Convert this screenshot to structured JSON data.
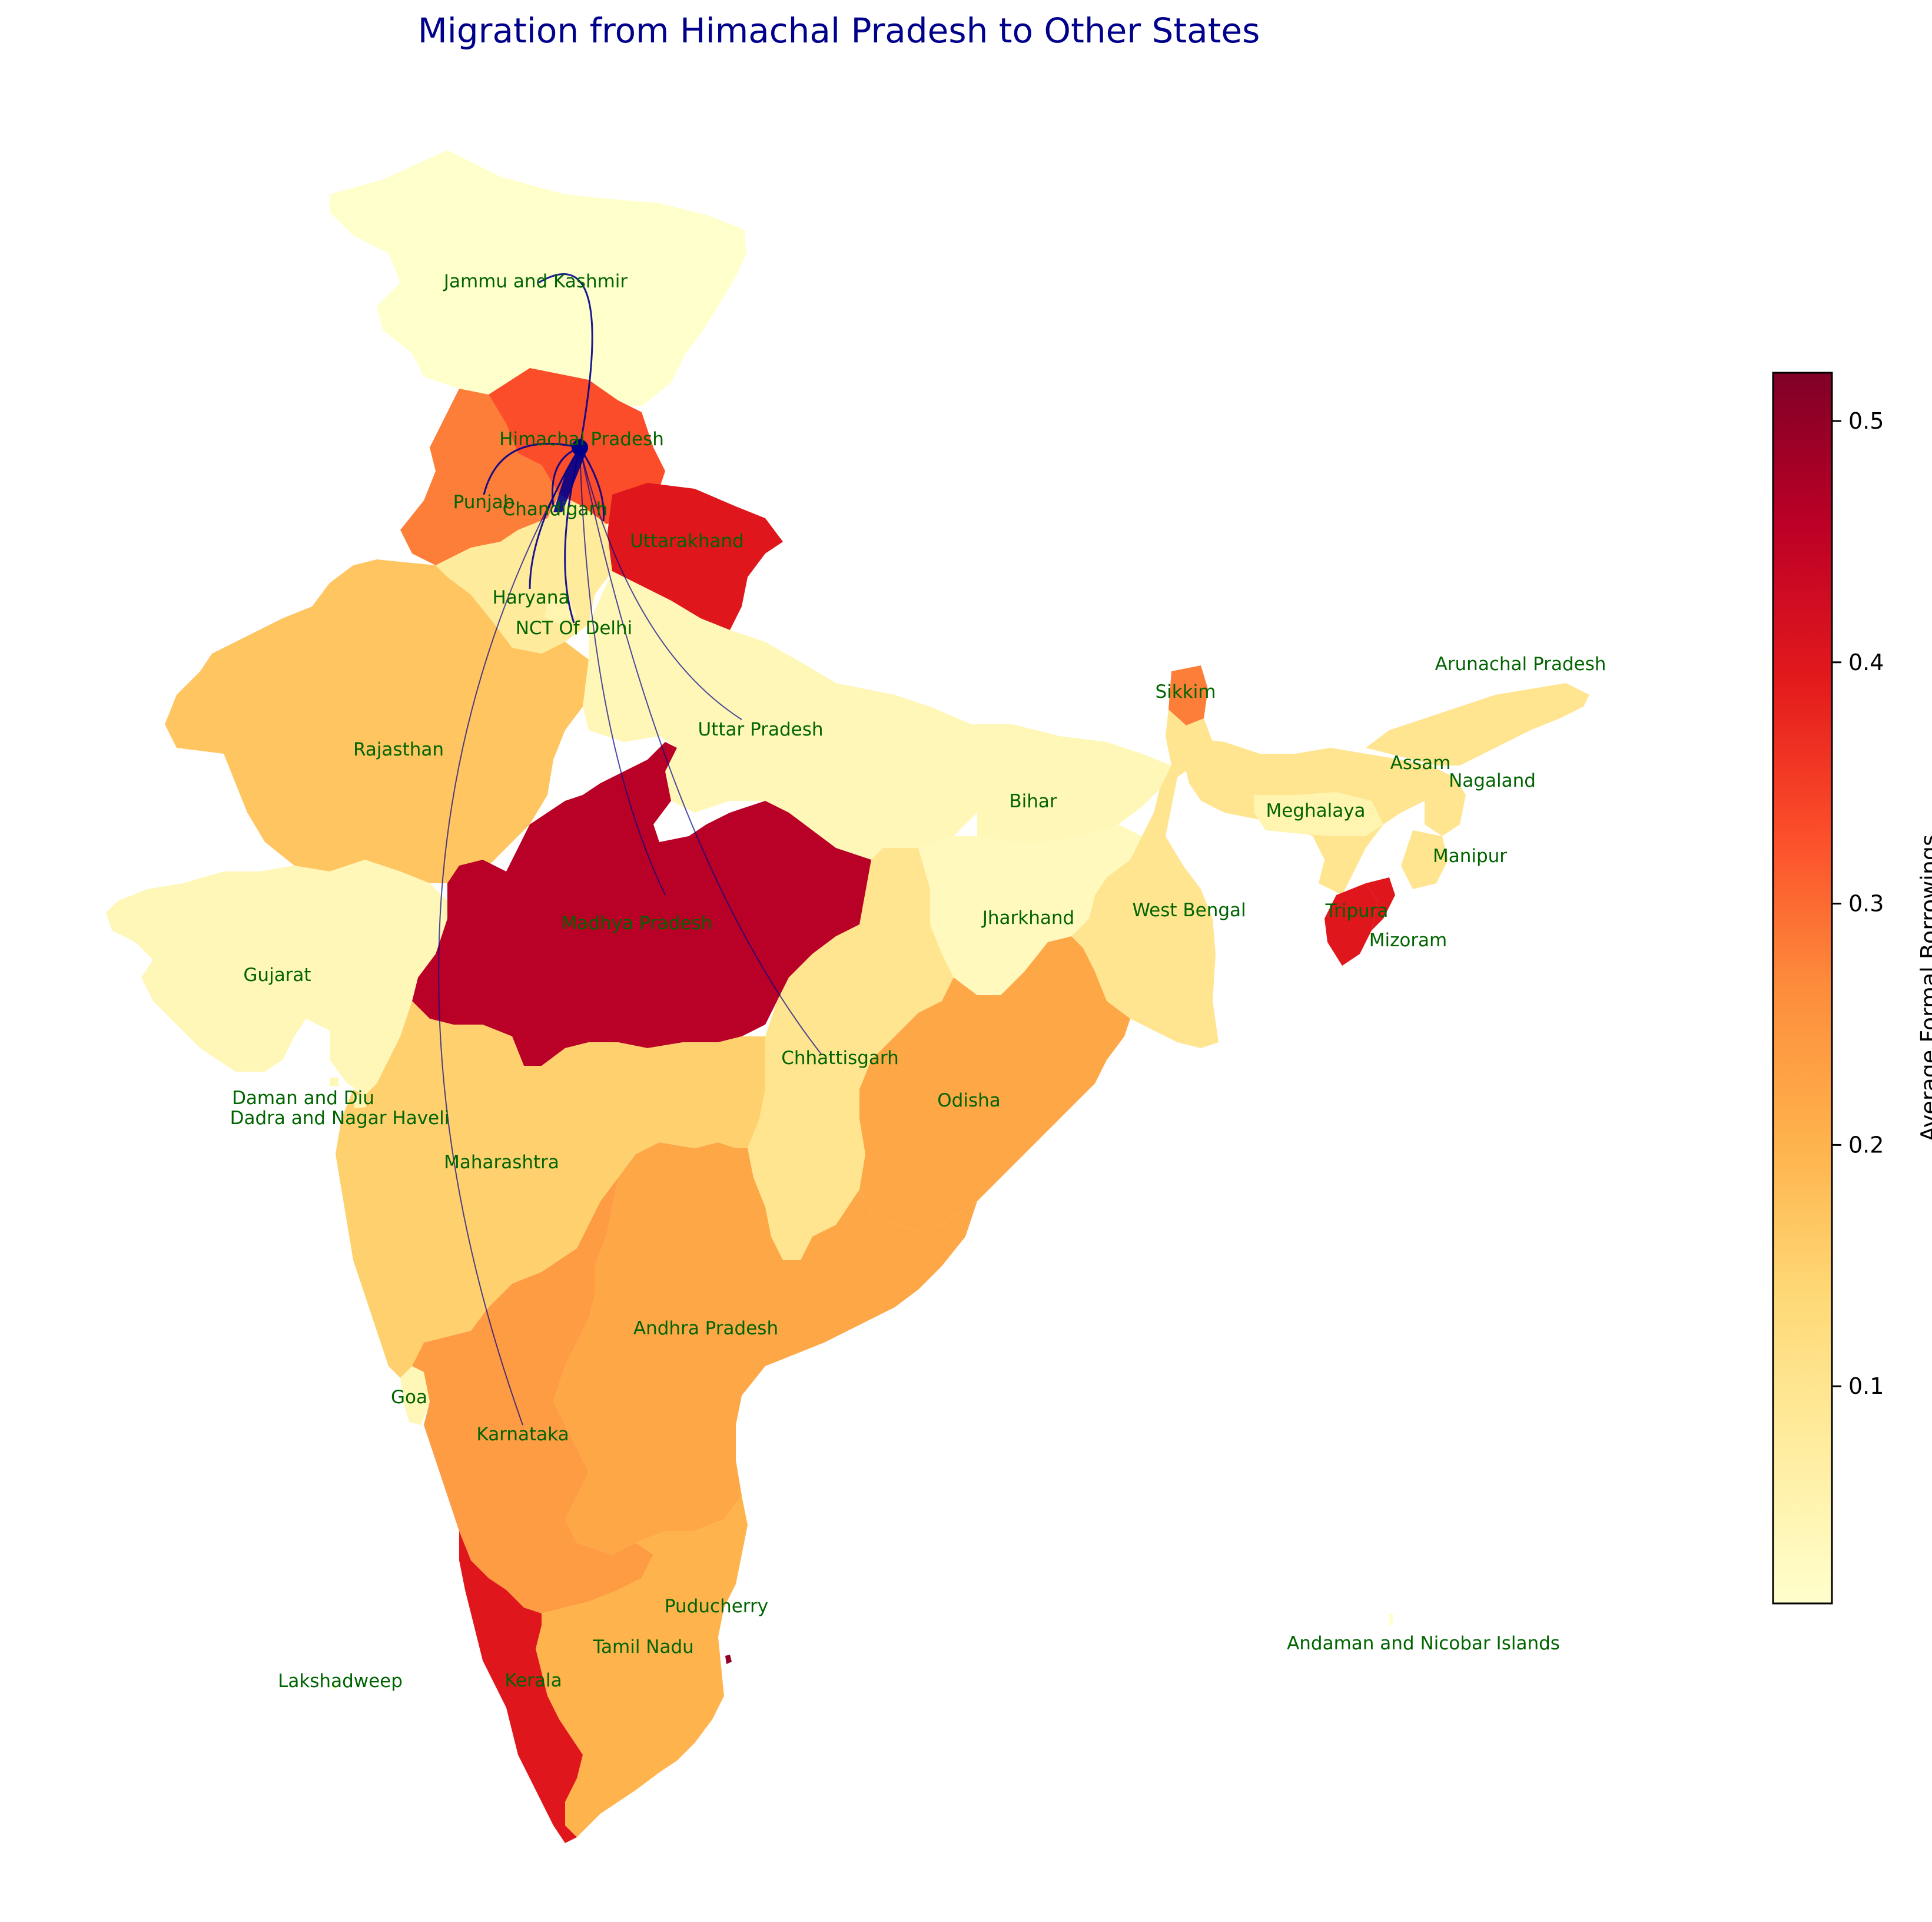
{
  "title": "Migration from Himachal Pradesh to Other States",
  "colors": {
    "title": "#00008b",
    "label": "#006400",
    "arc": "#00008b",
    "colormap": [
      "#ffffcc",
      "#ffeda0",
      "#fed976",
      "#feb24c",
      "#fd8d3c",
      "#fc4e2a",
      "#e31a1c",
      "#bd0026",
      "#800026"
    ]
  },
  "colorbar": {
    "label": "Average Formal Borrowings",
    "min": 0.01,
    "max": 0.52,
    "ticks": [
      "0.1",
      "0.2",
      "0.3",
      "0.4",
      "0.5"
    ]
  },
  "origin": "Himachal Pradesh",
  "states": [
    {
      "name": "Jammu and Kashmir",
      "value": 0.01
    },
    {
      "name": "Himachal Pradesh",
      "value": 0.33
    },
    {
      "name": "Punjab",
      "value": 0.28
    },
    {
      "name": "Chandigarh",
      "value": 0.3
    },
    {
      "name": "Uttarakhand",
      "value": 0.4
    },
    {
      "name": "Haryana",
      "value": 0.08
    },
    {
      "name": "NCT Of Delhi",
      "value": 0.05
    },
    {
      "name": "Rajasthan",
      "value": 0.17
    },
    {
      "name": "Uttar Pradesh",
      "value": 0.04
    },
    {
      "name": "Bihar",
      "value": 0.04
    },
    {
      "name": "Sikkim",
      "value": 0.28
    },
    {
      "name": "Arunachal Pradesh",
      "value": 0.1
    },
    {
      "name": "Assam",
      "value": 0.1
    },
    {
      "name": "Nagaland",
      "value": 0.1
    },
    {
      "name": "Meghalaya",
      "value": 0.05
    },
    {
      "name": "Manipur",
      "value": 0.1
    },
    {
      "name": "Tripura",
      "value": 0.4
    },
    {
      "name": "Mizoram",
      "value": 0.4
    },
    {
      "name": "Madhya Pradesh",
      "value": 0.46
    },
    {
      "name": "Jharkhand",
      "value": 0.03
    },
    {
      "name": "West Bengal",
      "value": 0.1
    },
    {
      "name": "Gujarat",
      "value": 0.04
    },
    {
      "name": "Chhattisgarh",
      "value": 0.1
    },
    {
      "name": "Odisha",
      "value": 0.22
    },
    {
      "name": "Daman and Diu",
      "value": 0.04
    },
    {
      "name": "Dadra and Nagar Haveli",
      "value": 0.04
    },
    {
      "name": "Maharashtra",
      "value": 0.15
    },
    {
      "name": "Andhra Pradesh",
      "value": 0.22
    },
    {
      "name": "Goa",
      "value": 0.04
    },
    {
      "name": "Karnataka",
      "value": 0.24
    },
    {
      "name": "Puducherry",
      "value": 0.5
    },
    {
      "name": "Tamil Nadu",
      "value": 0.2
    },
    {
      "name": "Kerala",
      "value": 0.4
    },
    {
      "name": "Lakshadweep",
      "value": 0.01
    },
    {
      "name": "Andaman and Nicobar Islands",
      "value": 0.01
    }
  ],
  "migration_destinations": [
    "Jammu and Kashmir",
    "Punjab",
    "Chandigarh",
    "Uttarakhand",
    "Haryana",
    "NCT Of Delhi",
    "Uttar Pradesh",
    "Madhya Pradesh",
    "Chhattisgarh",
    "Karnataka"
  ]
}
